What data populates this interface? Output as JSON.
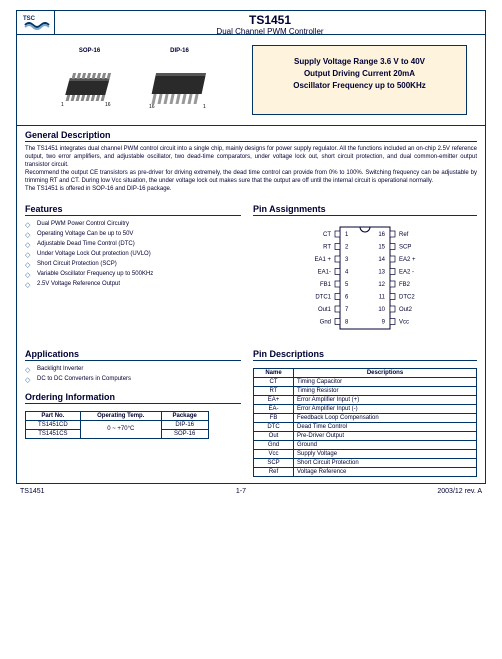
{
  "header": {
    "part": "TS1451",
    "subtitle": "Dual Channel PWM Controller",
    "logo_text": "TSC"
  },
  "packages": {
    "sop": "SOP-16",
    "dip": "DIP-16"
  },
  "spec_box": {
    "line1": "Supply Voltage Range 3.6 V to 40V",
    "line2": "Output Driving Current 20mA",
    "line3": "Oscillator Frequency up to 500KHz",
    "bg": "#fef4dd"
  },
  "general": {
    "title": "General Description",
    "p1": "The TS1451 integrates dual channel PWM control circuit into a single chip, mainly designs for power supply regulator. All the functions included an on-chip 2.5V reference output, two error amplifiers, and adjustable oscillator, two dead-time comparators, under voltage lock out, short circuit protection, and dual common-emitter output transistor circuit.",
    "p2": "Recommend the output CE transistors as pre-driver for driving extremely, the dead time control can provide from 0% to 100%. Switching frequency can be adjustable by trimming RT and CT. During low Vcc situation, the under voltage lock out makes sure that the output are off until the internal circuit is operational normally.",
    "p3": "The TS1451 is offered in SOP-16 and DIP-16 package."
  },
  "features": {
    "title": "Features",
    "items": [
      "Dual PWM Power Control Circuitry",
      "Operating Voltage Can be up to 50V",
      "Adjustable Dead Time Control (DTC)",
      "Under Voltage Lock Out protection (UVLO)",
      "Short Circuit Protection (SCP)",
      "Variable Oscillator Frequency up to 500KHz",
      "2.5V Voltage Reference Output"
    ]
  },
  "pin_assign": {
    "title": "Pin Assignments",
    "left": [
      "CT",
      "RT",
      "EA1 +",
      "EA1-",
      "FB1",
      "DTC1",
      "Out1",
      "Gnd"
    ],
    "right": [
      "Ref",
      "SCP",
      "EA2 +",
      "EA2 -",
      "FB2",
      "DTC2",
      "Out2",
      "Vcc"
    ],
    "body_fill": "#ffffff",
    "stroke": "#000033"
  },
  "apps": {
    "title": "Applications",
    "items": [
      "Backlight Inverter",
      "DC to DC Converters in Computers"
    ]
  },
  "ordering": {
    "title": "Ordering Information",
    "headers": [
      "Part No.",
      "Operating Temp.",
      "Package"
    ],
    "rows": [
      [
        "TS1451CD",
        "0 ~ +70°C",
        "DIP-16"
      ],
      [
        "TS1451CS",
        "",
        "SOP-16"
      ]
    ]
  },
  "pindesc": {
    "title": "Pin Descriptions",
    "headers": [
      "Name",
      "Descriptions"
    ],
    "rows": [
      [
        "CT",
        "Timing Capacitor"
      ],
      [
        "RT",
        "Timing Resistor"
      ],
      [
        "EA+",
        "Error Amplifier Input (+)"
      ],
      [
        "EA-",
        "Error Amplifier Input (-)"
      ],
      [
        "FB",
        "Feedback Loop Compensation"
      ],
      [
        "DTC",
        "Dead Time Control"
      ],
      [
        "Out",
        "Pre-Driver Output"
      ],
      [
        "Gnd",
        "Ground"
      ],
      [
        "Vcc",
        "Supply Voltage"
      ],
      [
        "SCP",
        "Short Circuit Protection"
      ],
      [
        "Ref",
        "Voltage Reference"
      ]
    ]
  },
  "footer": {
    "left": "TS1451",
    "center": "1-7",
    "right": "2003/12 rev. A"
  }
}
